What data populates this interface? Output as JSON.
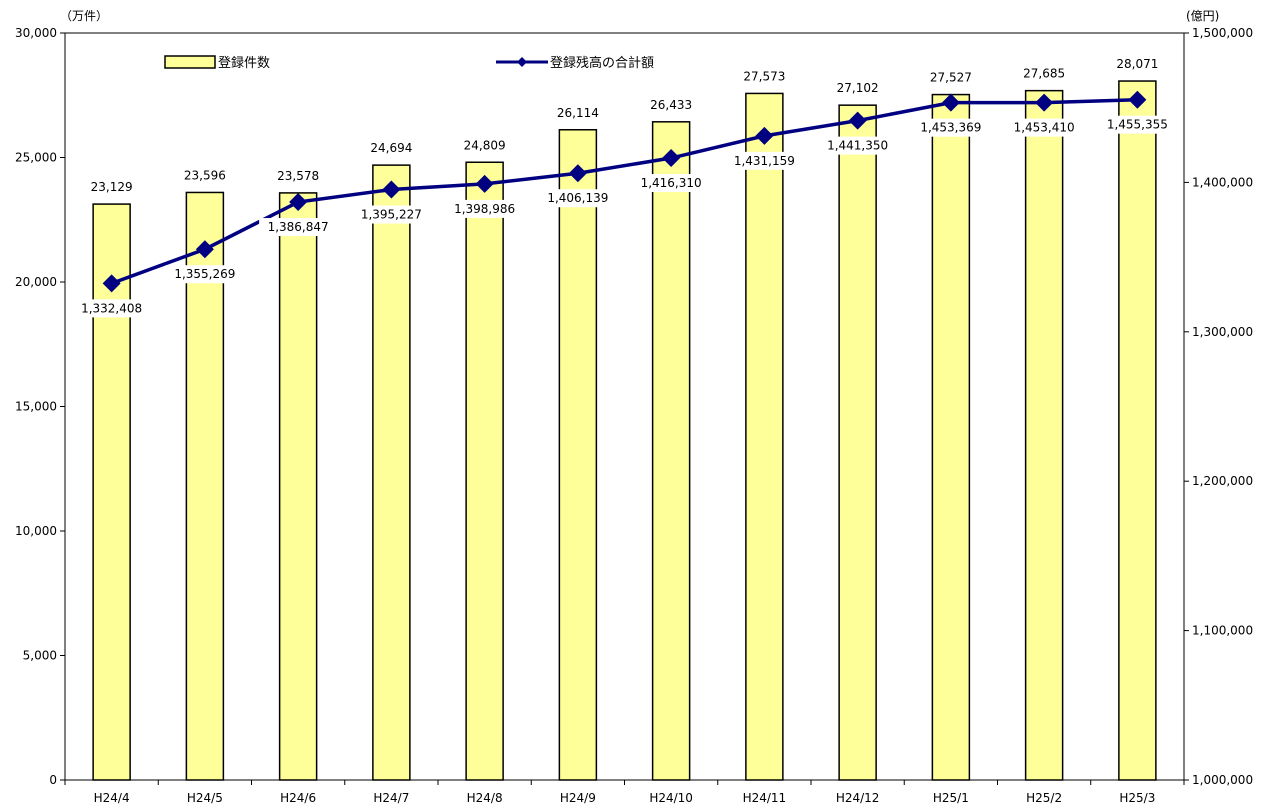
{
  "chart_data": {
    "type": "bar+line",
    "categories": [
      "H24/4",
      "H24/5",
      "H24/6",
      "H24/7",
      "H24/8",
      "H24/9",
      "H24/10",
      "H24/11",
      "H24/12",
      "H25/1",
      "H25/2",
      "H25/3"
    ],
    "series": [
      {
        "name": "登録件数",
        "type": "bar",
        "axis": "left",
        "color": "#FFFF99",
        "values": [
          23129,
          23596,
          23578,
          24694,
          24809,
          26114,
          26433,
          27573,
          27102,
          27527,
          27685,
          28071
        ],
        "labels": [
          "23,129",
          "23,596",
          "23,578",
          "24,694",
          "24,809",
          "26,114",
          "26,433",
          "27,573",
          "27,102",
          "27,527",
          "27,685",
          "28,071"
        ]
      },
      {
        "name": "登録残高の合計額",
        "type": "line",
        "axis": "right",
        "color": "#000080",
        "values": [
          1332408,
          1355269,
          1386847,
          1395227,
          1398986,
          1406139,
          1416310,
          1431159,
          1441350,
          1453369,
          1453410,
          1455355
        ],
        "labels": [
          "1,332,408",
          "1,355,269",
          "1,386,847",
          "1,395,227",
          "1,398,986",
          "1,406,139",
          "1,416,310",
          "1,431,159",
          "1,441,350",
          "1,453,369",
          "1,453,410",
          "1,455,355"
        ]
      }
    ],
    "left_axis": {
      "unit": "（万件）",
      "ylim": [
        0,
        30000
      ],
      "ticks": [
        0,
        5000,
        10000,
        15000,
        20000,
        25000,
        30000
      ],
      "tick_labels": [
        "0",
        "5,000",
        "10,000",
        "15,000",
        "20,000",
        "25,000",
        "30,000"
      ]
    },
    "right_axis": {
      "unit": "(億円)",
      "ylim": [
        1000000,
        1500000
      ],
      "ticks": [
        1000000,
        1100000,
        1200000,
        1300000,
        1400000,
        1500000
      ],
      "tick_labels": [
        "1,000,000",
        "1,100,000",
        "1,200,000",
        "1,300,000",
        "1,400,000",
        "1,500,000"
      ]
    },
    "legend_position": "top",
    "grid": false
  }
}
